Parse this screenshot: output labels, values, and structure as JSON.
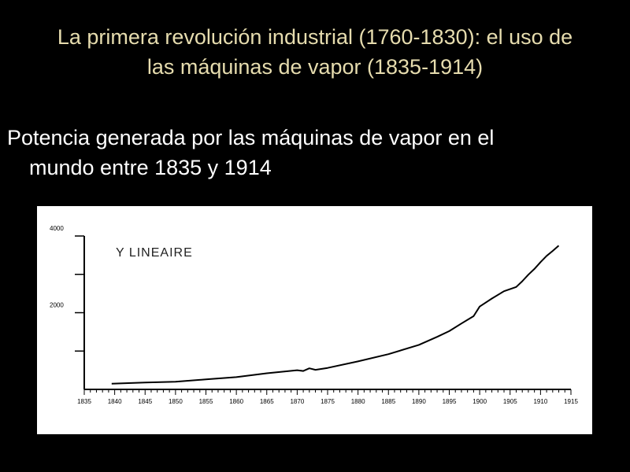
{
  "slide": {
    "title_line1": "La primera revolución industrial (1760-1830): el uso de",
    "title_line2": "las máquinas de vapor (1835-1914)",
    "bullet_line1": "Potencia generada por las máquinas de vapor en el",
    "bullet_line2": "mundo entre 1835 y 1914"
  },
  "colors": {
    "background": "#000000",
    "title": "#e6dcae",
    "bullet": "#ffffff",
    "chart_bg": "#ffffff",
    "chart_ink": "#000000"
  },
  "chart_data": {
    "type": "line",
    "title": "",
    "annotation": "Y LINEAIRE",
    "xlabel": "",
    "ylabel": "",
    "xlim": [
      1835,
      1915
    ],
    "ylim": [
      0,
      4000
    ],
    "x_tick_labels": [
      "1835",
      "1840",
      "1845",
      "1850",
      "1855",
      "1860",
      "1865",
      "1870",
      "1875",
      "1880",
      "1885",
      "1890",
      "1895",
      "1900",
      "1905",
      "1910",
      "1915"
    ],
    "y_tick_labels": [
      "4000",
      "2000"
    ],
    "y_tick_labeled_values": [
      4000,
      2000
    ],
    "y_tick_values": [
      1000,
      2000,
      3000,
      4000
    ],
    "grid": false,
    "series": [
      {
        "x": [
          1839.5,
          1845,
          1850,
          1855,
          1860,
          1865,
          1870,
          1871,
          1872,
          1873,
          1875,
          1880,
          1885,
          1890,
          1893,
          1895,
          1897,
          1899,
          1900,
          1902,
          1904,
          1906,
          1907,
          1908,
          1909,
          1910,
          1911,
          1912,
          1913
        ],
        "y": [
          150,
          180,
          200,
          260,
          320,
          420,
          500,
          480,
          550,
          510,
          560,
          730,
          920,
          1160,
          1370,
          1520,
          1720,
          1910,
          2160,
          2370,
          2560,
          2670,
          2820,
          2990,
          3140,
          3320,
          3480,
          3610,
          3750
        ]
      }
    ]
  }
}
